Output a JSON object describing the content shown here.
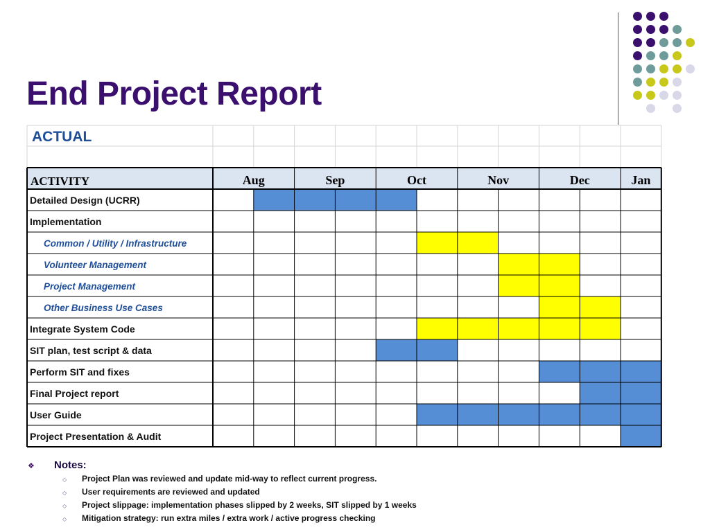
{
  "slide": {
    "title": "End Project Report"
  },
  "colors": {
    "title": "#3b0f6e",
    "blue": "#558ed5",
    "yellow": "#ffff00",
    "header_fill": "#dbe5f1",
    "sub_text": "#1f4e99",
    "actual_text": "#1f4e99",
    "dots": [
      "#3b0f6e",
      "#6f9c9a",
      "#c8c81a",
      "#d8d8e8"
    ]
  },
  "gantt": {
    "section_label": "ACTUAL",
    "activity_header": "ACTIVITY",
    "months": [
      {
        "label": "Aug",
        "span": 2
      },
      {
        "label": "Sep",
        "span": 2
      },
      {
        "label": "Oct",
        "span": 2
      },
      {
        "label": "Nov",
        "span": 2
      },
      {
        "label": "Dec",
        "span": 2
      },
      {
        "label": "Jan",
        "span": 1
      }
    ],
    "rows": [
      {
        "label": "Detailed Design (UCRR)",
        "type": "main",
        "fills": [
          0,
          1,
          1,
          1,
          1,
          0,
          0,
          0,
          0,
          0,
          0
        ],
        "color": "blue"
      },
      {
        "label": "Implementation",
        "type": "main",
        "fills": [
          0,
          0,
          0,
          0,
          0,
          0,
          0,
          0,
          0,
          0,
          0
        ],
        "color": "blue"
      },
      {
        "label": "Common / Utility / Infrastructure",
        "type": "sub",
        "fills": [
          0,
          0,
          0,
          0,
          0,
          1,
          1,
          0,
          0,
          0,
          0
        ],
        "color": "yellow"
      },
      {
        "label": "Volunteer Management",
        "type": "sub",
        "fills": [
          0,
          0,
          0,
          0,
          0,
          0,
          0,
          1,
          1,
          0,
          0
        ],
        "color": "yellow"
      },
      {
        "label": "Project Management",
        "type": "sub",
        "fills": [
          0,
          0,
          0,
          0,
          0,
          0,
          0,
          1,
          1,
          0,
          0
        ],
        "color": "yellow"
      },
      {
        "label": "Other Business Use Cases",
        "type": "sub",
        "fills": [
          0,
          0,
          0,
          0,
          0,
          0,
          0,
          0,
          1,
          1,
          0
        ],
        "color": "yellow"
      },
      {
        "label": "Integrate System Code",
        "type": "main",
        "fills": [
          0,
          0,
          0,
          0,
          0,
          1,
          1,
          1,
          1,
          1,
          0
        ],
        "color": "yellow"
      },
      {
        "label": "SIT plan, test script & data",
        "type": "main",
        "fills": [
          0,
          0,
          0,
          0,
          1,
          1,
          0,
          0,
          0,
          0,
          0
        ],
        "color": "blue"
      },
      {
        "label": "Perform SIT and fixes",
        "type": "main",
        "fills": [
          0,
          0,
          0,
          0,
          0,
          0,
          0,
          0,
          1,
          1,
          1
        ],
        "color": "blue"
      },
      {
        "label": "Final Project report",
        "type": "main",
        "fills": [
          0,
          0,
          0,
          0,
          0,
          0,
          0,
          0,
          0,
          1,
          1
        ],
        "color": "blue"
      },
      {
        "label": "User Guide",
        "type": "main",
        "fills": [
          0,
          0,
          0,
          0,
          0,
          1,
          1,
          1,
          1,
          1,
          1
        ],
        "color": "blue"
      },
      {
        "label": "Project Presentation & Audit",
        "type": "main",
        "fills": [
          0,
          0,
          0,
          0,
          0,
          0,
          0,
          0,
          0,
          0,
          1
        ],
        "color": "blue"
      }
    ]
  },
  "notes": {
    "heading": "Notes:",
    "items": [
      "Project Plan was reviewed and update mid-way to reflect current progress.",
      "User requirements are reviewed and updated",
      "Project slippage: implementation phases slipped by 2 weeks, SIT slipped by 1 weeks",
      "Mitigation strategy: run extra miles / extra work / active progress checking"
    ]
  }
}
